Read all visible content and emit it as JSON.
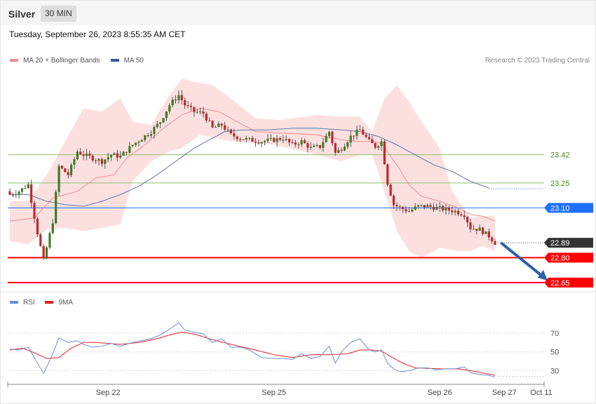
{
  "header": {
    "title": "Silver",
    "timeframe": "30 MIN"
  },
  "timestamp": "Tuesday, September 26, 2023 8:55:35 AM CET",
  "legend": {
    "bollinger_label": "MA 20 + Bollinger Bands",
    "ma50_label": "MA 50",
    "credit": "Research © 2023 Trading Central"
  },
  "rsi_legend": {
    "rsi_label": "RSI",
    "ma_label": "9MA"
  },
  "colors": {
    "bull": "#3a7d24",
    "bear": "#c0262b",
    "band": "#fbdada",
    "ma20": "#f08c8c",
    "ma50": "#5b78a8",
    "support": "#ff0000",
    "pivot": "#1f6fff",
    "resistance": "#8dc06b",
    "arrow": "#2f5fa8",
    "rsi": "#6a8fd8",
    "rsi_ma": "#e02020"
  },
  "chart_data": [
    {
      "type": "candlestick",
      "name": "price",
      "ylim": [
        22.62,
        23.93
      ],
      "x": [
        0,
        130
      ],
      "time_labels": [
        {
          "label": "Sep 22",
          "i": 32
        },
        {
          "label": "Sep 25",
          "i": 86
        },
        {
          "label": "Sep 26",
          "i": 140
        },
        {
          "label": "Sep 27",
          "i": 161
        },
        {
          "label": "Oct 11",
          "i": 177
        }
      ],
      "levels": [
        {
          "value": 23.42,
          "label": "23.42",
          "kind": "resistance"
        },
        {
          "value": 23.25,
          "label": "23.25",
          "kind": "resistance"
        },
        {
          "value": 23.1,
          "label": "23.10",
          "kind": "pivot"
        },
        {
          "value": 22.89,
          "label": "22.89",
          "kind": "current"
        },
        {
          "value": 22.8,
          "label": "22.80",
          "kind": "support"
        },
        {
          "value": 22.65,
          "label": "22.65",
          "kind": "support"
        }
      ],
      "arrow": {
        "from": [
          159,
          22.89
        ],
        "to": [
          176,
          22.65
        ]
      },
      "anchors_close": [
        [
          0,
          23.18
        ],
        [
          3,
          23.2
        ],
        [
          6,
          23.24
        ],
        [
          9,
          22.95
        ],
        [
          11,
          22.78
        ],
        [
          14,
          23.02
        ],
        [
          16,
          23.35
        ],
        [
          19,
          23.3
        ],
        [
          22,
          23.44
        ],
        [
          24,
          23.42
        ],
        [
          27,
          23.4
        ],
        [
          30,
          23.38
        ],
        [
          33,
          23.42
        ],
        [
          36,
          23.41
        ],
        [
          40,
          23.48
        ],
        [
          43,
          23.52
        ],
        [
          46,
          23.56
        ],
        [
          49,
          23.62
        ],
        [
          52,
          23.72
        ],
        [
          55,
          23.78
        ],
        [
          57,
          23.72
        ],
        [
          60,
          23.68
        ],
        [
          63,
          23.67
        ],
        [
          66,
          23.58
        ],
        [
          69,
          23.6
        ],
        [
          72,
          23.54
        ],
        [
          75,
          23.52
        ],
        [
          78,
          23.51
        ],
        [
          82,
          23.5
        ],
        [
          86,
          23.51
        ],
        [
          89,
          23.52
        ],
        [
          92,
          23.48
        ],
        [
          95,
          23.5
        ],
        [
          98,
          23.46
        ],
        [
          101,
          23.47
        ],
        [
          104,
          23.56
        ],
        [
          106,
          23.43
        ],
        [
          108,
          23.46
        ],
        [
          111,
          23.53
        ],
        [
          114,
          23.57
        ],
        [
          117,
          23.5
        ],
        [
          119,
          23.47
        ],
        [
          121,
          23.5
        ],
        [
          123,
          23.25
        ],
        [
          125,
          23.12
        ],
        [
          127,
          23.1
        ],
        [
          130,
          23.08
        ],
        [
          133,
          23.11
        ],
        [
          136,
          23.11
        ],
        [
          139,
          23.1
        ],
        [
          142,
          23.09
        ],
        [
          145,
          23.08
        ],
        [
          148,
          23.06
        ],
        [
          150,
          22.98
        ],
        [
          153,
          22.97
        ],
        [
          156,
          22.93
        ],
        [
          158,
          22.89
        ]
      ],
      "bollinger_top": [
        [
          0,
          23.14
        ],
        [
          6,
          23.14
        ],
        [
          12,
          23.3
        ],
        [
          18,
          23.5
        ],
        [
          24,
          23.7
        ],
        [
          30,
          23.68
        ],
        [
          36,
          23.76
        ],
        [
          40,
          23.62
        ],
        [
          46,
          23.6
        ],
        [
          52,
          23.78
        ],
        [
          56,
          23.88
        ],
        [
          60,
          23.86
        ],
        [
          66,
          23.84
        ],
        [
          72,
          23.76
        ],
        [
          80,
          23.64
        ],
        [
          88,
          23.63
        ],
        [
          100,
          23.66
        ],
        [
          108,
          23.65
        ],
        [
          114,
          23.65
        ],
        [
          118,
          23.56
        ],
        [
          122,
          23.76
        ],
        [
          126,
          23.84
        ],
        [
          130,
          23.74
        ],
        [
          134,
          23.62
        ],
        [
          140,
          23.46
        ],
        [
          144,
          23.2
        ],
        [
          150,
          23.04
        ],
        [
          154,
          23.05
        ],
        [
          158,
          23.05
        ]
      ],
      "bollinger_bottom": [
        [
          0,
          22.9
        ],
        [
          6,
          22.88
        ],
        [
          12,
          22.97
        ],
        [
          18,
          22.98
        ],
        [
          24,
          22.96
        ],
        [
          30,
          22.98
        ],
        [
          36,
          23.0
        ],
        [
          40,
          23.26
        ],
        [
          46,
          23.38
        ],
        [
          52,
          23.44
        ],
        [
          56,
          23.46
        ],
        [
          62,
          23.54
        ],
        [
          72,
          23.5
        ],
        [
          86,
          23.48
        ],
        [
          100,
          23.42
        ],
        [
          108,
          23.38
        ],
        [
          114,
          23.42
        ],
        [
          118,
          23.42
        ],
        [
          122,
          23.2
        ],
        [
          126,
          22.96
        ],
        [
          130,
          22.84
        ],
        [
          134,
          22.8
        ],
        [
          140,
          22.86
        ],
        [
          146,
          22.84
        ],
        [
          150,
          22.84
        ],
        [
          154,
          22.87
        ],
        [
          158,
          22.84
        ]
      ],
      "ma20": [
        [
          0,
          23.02
        ],
        [
          8,
          23.04
        ],
        [
          14,
          23.16
        ],
        [
          22,
          23.2
        ],
        [
          28,
          23.28
        ],
        [
          34,
          23.3
        ],
        [
          38,
          23.4
        ],
        [
          44,
          23.48
        ],
        [
          50,
          23.58
        ],
        [
          56,
          23.66
        ],
        [
          62,
          23.7
        ],
        [
          68,
          23.68
        ],
        [
          74,
          23.62
        ],
        [
          80,
          23.56
        ],
        [
          90,
          23.55
        ],
        [
          100,
          23.54
        ],
        [
          108,
          23.51
        ],
        [
          114,
          23.5
        ],
        [
          118,
          23.5
        ],
        [
          121,
          23.49
        ],
        [
          126,
          23.36
        ],
        [
          130,
          23.24
        ],
        [
          134,
          23.17
        ],
        [
          140,
          23.14
        ],
        [
          146,
          23.1
        ],
        [
          150,
          23.06
        ],
        [
          154,
          23.05
        ],
        [
          158,
          23.02
        ]
      ],
      "ma50": [
        [
          0,
          23.18
        ],
        [
          6,
          23.18
        ],
        [
          12,
          23.14
        ],
        [
          18,
          23.12
        ],
        [
          24,
          23.11
        ],
        [
          30,
          23.14
        ],
        [
          36,
          23.18
        ],
        [
          42,
          23.23
        ],
        [
          48,
          23.3
        ],
        [
          54,
          23.38
        ],
        [
          60,
          23.46
        ],
        [
          66,
          23.52
        ],
        [
          70,
          23.56
        ],
        [
          76,
          23.57
        ],
        [
          84,
          23.57
        ],
        [
          92,
          23.58
        ],
        [
          100,
          23.58
        ],
        [
          108,
          23.57
        ],
        [
          114,
          23.56
        ],
        [
          120,
          23.53
        ],
        [
          126,
          23.48
        ],
        [
          132,
          23.42
        ],
        [
          138,
          23.36
        ],
        [
          144,
          23.32
        ],
        [
          150,
          23.26
        ],
        [
          156,
          23.22
        ]
      ]
    },
    {
      "type": "line",
      "name": "rsi",
      "ylim": [
        14,
        96
      ],
      "gridlines": [
        70,
        50,
        30
      ],
      "series": [
        {
          "name": "RSI",
          "values": [
            [
              0,
              53
            ],
            [
              3,
              52
            ],
            [
              6,
              55
            ],
            [
              9,
              38
            ],
            [
              11,
              27
            ],
            [
              14,
              48
            ],
            [
              16,
              65
            ],
            [
              19,
              60
            ],
            [
              22,
              62
            ],
            [
              24,
              58
            ],
            [
              27,
              55
            ],
            [
              30,
              56
            ],
            [
              33,
              59
            ],
            [
              36,
              56
            ],
            [
              40,
              60
            ],
            [
              43,
              62
            ],
            [
              46,
              64
            ],
            [
              49,
              68
            ],
            [
              52,
              74
            ],
            [
              55,
              81
            ],
            [
              57,
              73
            ],
            [
              60,
              71
            ],
            [
              63,
              69
            ],
            [
              66,
              60
            ],
            [
              69,
              64
            ],
            [
              72,
              55
            ],
            [
              75,
              55
            ],
            [
              78,
              52
            ],
            [
              82,
              44
            ],
            [
              86,
              43
            ],
            [
              89,
              43
            ],
            [
              92,
              42
            ],
            [
              95,
              48
            ],
            [
              98,
              43
            ],
            [
              101,
              45
            ],
            [
              104,
              56
            ],
            [
              106,
              38
            ],
            [
              108,
              50
            ],
            [
              111,
              60
            ],
            [
              114,
              64
            ],
            [
              117,
              52
            ],
            [
              119,
              50
            ],
            [
              121,
              52
            ],
            [
              123,
              38
            ],
            [
              125,
              32
            ],
            [
              127,
              29
            ],
            [
              130,
              30
            ],
            [
              133,
              33
            ],
            [
              136,
              33
            ],
            [
              139,
              31
            ],
            [
              142,
              32
            ],
            [
              145,
              32
            ],
            [
              148,
              34
            ],
            [
              150,
              28
            ],
            [
              153,
              26
            ],
            [
              156,
              25
            ],
            [
              158,
              23
            ]
          ]
        },
        {
          "name": "9MA",
          "values": [
            [
              0,
              52
            ],
            [
              4,
              54
            ],
            [
              8,
              49
            ],
            [
              12,
              43
            ],
            [
              16,
              44
            ],
            [
              20,
              54
            ],
            [
              24,
              60
            ],
            [
              28,
              60
            ],
            [
              32,
              59
            ],
            [
              36,
              58
            ],
            [
              42,
              60
            ],
            [
              48,
              64
            ],
            [
              52,
              68
            ],
            [
              56,
              71
            ],
            [
              60,
              69
            ],
            [
              66,
              63
            ],
            [
              72,
              58
            ],
            [
              80,
              52
            ],
            [
              86,
              47
            ],
            [
              92,
              44
            ],
            [
              98,
              47
            ],
            [
              104,
              47
            ],
            [
              110,
              48
            ],
            [
              114,
              52
            ],
            [
              118,
              52
            ],
            [
              121,
              51
            ],
            [
              124,
              45
            ],
            [
              128,
              38
            ],
            [
              132,
              33
            ],
            [
              140,
              32
            ],
            [
              146,
              32
            ],
            [
              152,
              29
            ],
            [
              158,
              25
            ]
          ]
        }
      ]
    }
  ]
}
